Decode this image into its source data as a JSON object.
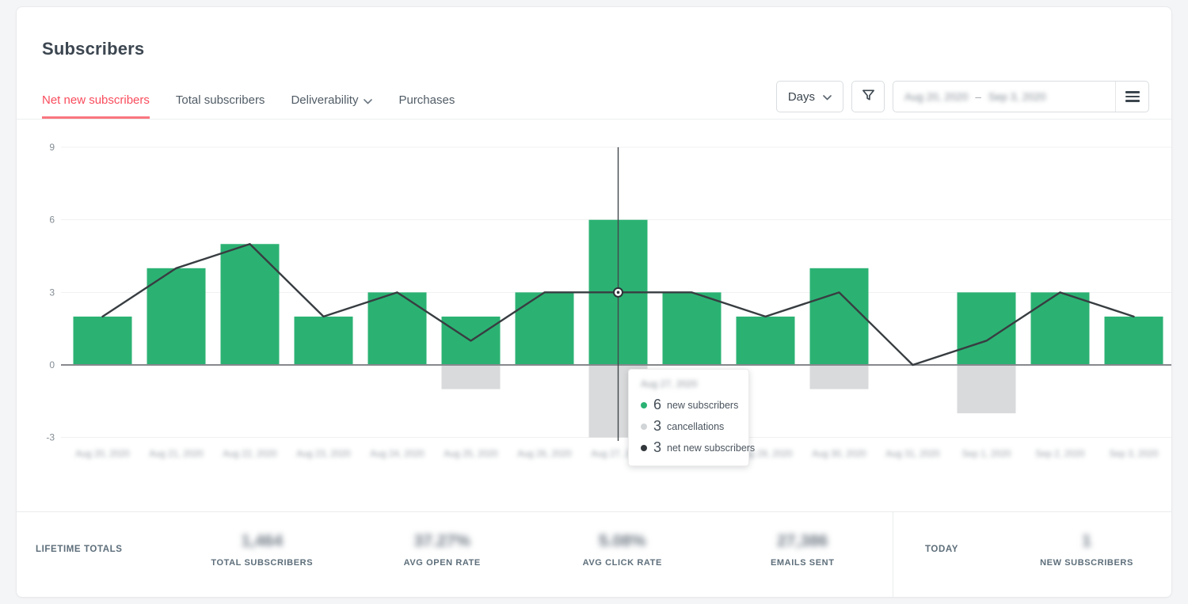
{
  "header": {
    "title": "Subscribers"
  },
  "tabs": [
    {
      "id": "net-new-subscribers",
      "label": "Net new subscribers",
      "active": true,
      "dropdown": false
    },
    {
      "id": "total-subscribers",
      "label": "Total subscribers",
      "active": false,
      "dropdown": false
    },
    {
      "id": "deliverability",
      "label": "Deliverability",
      "active": false,
      "dropdown": true
    },
    {
      "id": "purchases",
      "label": "Purchases",
      "active": false,
      "dropdown": false
    }
  ],
  "controls": {
    "interval_button": {
      "label": "Days",
      "icon": "chevron-down"
    },
    "filter_button": {
      "icon": "funnel"
    },
    "date_range_input": {
      "start": "Aug 20, 2020",
      "dash": "–",
      "end": "Sep 3, 2020",
      "blurred": true
    },
    "menu_button": {
      "icon": "hamburger"
    }
  },
  "chart_data": {
    "type": "bar+line",
    "x_labels": [
      "Aug 20, 2020",
      "Aug 21, 2020",
      "Aug 22, 2020",
      "Aug 23, 2020",
      "Aug 24, 2020",
      "Aug 25, 2020",
      "Aug 26, 2020",
      "Aug 27, 2020",
      "Aug 28, 2020",
      "Aug 29, 2020",
      "Aug 30, 2020",
      "Aug 31, 2020",
      "Sep 1, 2020",
      "Sep 2, 2020",
      "Sep 3, 2020"
    ],
    "x_labels_blurred": true,
    "yticks": [
      9,
      6,
      3,
      0,
      -3
    ],
    "ylim": [
      -3.5,
      9.3
    ],
    "grid": true,
    "legend_position": "none",
    "series": [
      {
        "name": "new subscribers",
        "type": "bar",
        "color": "#2bb273",
        "values": [
          2,
          4,
          5,
          2,
          3,
          2,
          3,
          6,
          3,
          2,
          4,
          0,
          3,
          3,
          2
        ]
      },
      {
        "name": "cancellations",
        "type": "bar",
        "color": "#d9dadb",
        "direction": "negative",
        "values": [
          0,
          0,
          0,
          0,
          0,
          1,
          0,
          3,
          0,
          0,
          1,
          0,
          2,
          0,
          0
        ]
      },
      {
        "name": "net new subscribers",
        "type": "line",
        "color": "#383d41",
        "values": [
          2,
          4,
          5,
          2,
          3,
          1,
          3,
          3,
          3,
          2,
          3,
          0,
          1,
          3,
          2
        ]
      }
    ],
    "highlight_index": 7,
    "tooltip": {
      "date": "Aug 27, 2020",
      "date_blurred": true,
      "rows": [
        {
          "value": "6",
          "label": "new subscribers",
          "dot_color": "#2bb273"
        },
        {
          "value": "3",
          "label": "cancellations",
          "dot_color": "#d2d5d7"
        },
        {
          "value": "3",
          "label": "net new subscribers",
          "dot_color": "#32373c"
        }
      ]
    }
  },
  "stats_bar": {
    "lifetime": {
      "section_label": "LIFETIME TOTALS",
      "stats": [
        {
          "id": "total-subscribers",
          "value": "1,464",
          "label": "TOTAL SUBSCRIBERS",
          "blurred": true
        },
        {
          "id": "avg-open-rate",
          "value": "37.27%",
          "label": "AVG OPEN RATE",
          "blurred": true
        },
        {
          "id": "avg-click-rate",
          "value": "5.08%",
          "label": "AVG CLICK RATE",
          "blurred": true
        },
        {
          "id": "emails-sent",
          "value": "27,386",
          "label": "EMAILS SENT",
          "blurred": true
        }
      ]
    },
    "today": {
      "section_label": "TODAY",
      "stats": [
        {
          "id": "new-subscribers-today",
          "value": "1",
          "label": "NEW SUBSCRIBERS",
          "blurred": true
        }
      ]
    }
  },
  "colors": {
    "accent_red": "#f94d5d",
    "tab_underline": "#f97680",
    "bar_green": "#2bb273",
    "bar_gray": "#d9dadb",
    "line_dark": "#383d41",
    "zero_axis": "#86898c",
    "gridline": "#f0f1f2",
    "page_bg": "#f4f5f6",
    "card_border": "#e8eaec"
  }
}
